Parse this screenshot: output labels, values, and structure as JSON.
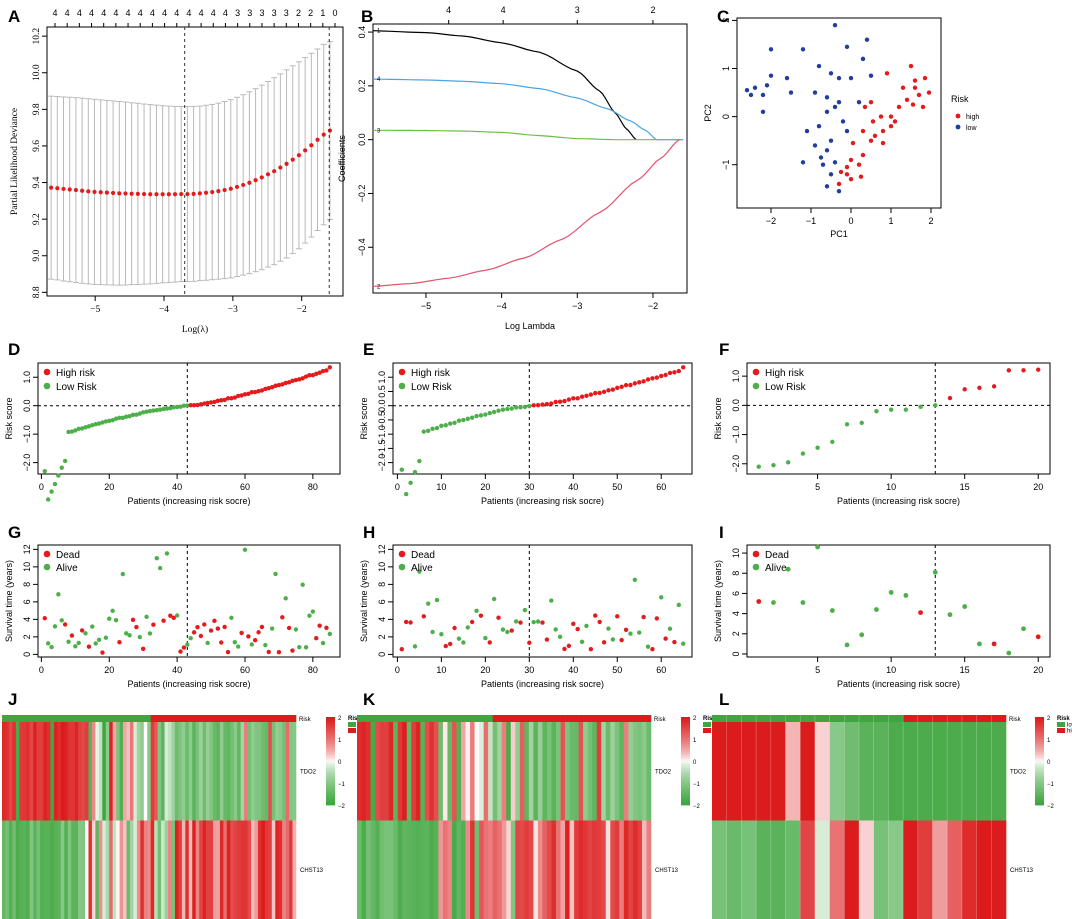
{
  "colors": {
    "red": "#e41a1c",
    "green": "#4daf4a",
    "blue": "#1f3f9e",
    "grey": "#b9b9b9",
    "hmRed": "#dc1c1c",
    "hmGreen": "#3ea63e",
    "curveBlack": "#000000",
    "curveBlue": "#4ba3e3",
    "curveGreen": "#6cc04a",
    "curvePink": "#e8516e"
  },
  "chart_data": [
    {
      "panel": "A",
      "type": "line",
      "xlabel": "Log(λ)",
      "ylabel": "Partial Likelihood Deviance",
      "xlim": [
        -5.7,
        -1.4
      ],
      "ylim": [
        8.78,
        10.25
      ],
      "xticks": [
        -5,
        -4,
        -3,
        -2
      ],
      "yticks": [
        8.8,
        9.0,
        9.2,
        9.4,
        9.6,
        9.8,
        10.0,
        10.2
      ],
      "top_ticks": [
        "4",
        "4",
        "4",
        "4",
        "4",
        "4",
        "4",
        "4",
        "4",
        "4",
        "4",
        "4",
        "4",
        "4",
        "4",
        "3",
        "3",
        "3",
        "3",
        "3",
        "2",
        "2",
        "1",
        "0"
      ],
      "vlines": [
        -3.7,
        -1.6
      ],
      "series": [
        {
          "name": "mean deviance",
          "x": [
            -5.64,
            -5.55,
            -5.46,
            -5.37,
            -5.28,
            -5.19,
            -5.1,
            -5.01,
            -4.92,
            -4.83,
            -4.74,
            -4.65,
            -4.56,
            -4.47,
            -4.38,
            -4.29,
            -4.2,
            -4.11,
            -4.02,
            -3.93,
            -3.84,
            -3.75,
            -3.66,
            -3.57,
            -3.48,
            -3.39,
            -3.3,
            -3.21,
            -3.12,
            -3.03,
            -2.94,
            -2.85,
            -2.76,
            -2.67,
            -2.58,
            -2.49,
            -2.4,
            -2.31,
            -2.22,
            -2.13,
            -2.04,
            -1.95,
            -1.86,
            -1.77,
            -1.68,
            -1.59
          ],
          "y": [
            9.372,
            9.369,
            9.365,
            9.362,
            9.359,
            9.355,
            9.352,
            9.349,
            9.347,
            9.345,
            9.343,
            9.341,
            9.34,
            9.339,
            9.338,
            9.337,
            9.336,
            9.336,
            9.336,
            9.336,
            9.336,
            9.337,
            9.337,
            9.338,
            9.341,
            9.344,
            9.348,
            9.353,
            9.359,
            9.366,
            9.376,
            9.387,
            9.399,
            9.413,
            9.428,
            9.445,
            9.462,
            9.482,
            9.502,
            9.525,
            9.549,
            9.576,
            9.604,
            9.634,
            9.662,
            9.684
          ],
          "upper": [
            9.872,
            9.87,
            9.868,
            9.866,
            9.864,
            9.861,
            9.858,
            9.855,
            9.852,
            9.849,
            9.846,
            9.843,
            9.84,
            9.836,
            9.833,
            9.829,
            9.826,
            9.823,
            9.82,
            9.818,
            9.816,
            9.815,
            9.815,
            9.816,
            9.818,
            9.822,
            9.827,
            9.834,
            9.843,
            9.853,
            9.866,
            9.88,
            9.896,
            9.913,
            9.932,
            9.952,
            9.973,
            9.994,
            10.016,
            10.038,
            10.06,
            10.083,
            10.106,
            10.13,
            10.155,
            10.17
          ],
          "lower": [
            8.872,
            8.868,
            8.862,
            8.858,
            8.854,
            8.849,
            8.846,
            8.843,
            8.842,
            8.841,
            8.84,
            8.839,
            8.84,
            8.842,
            8.843,
            8.845,
            8.846,
            8.849,
            8.852,
            8.854,
            8.856,
            8.859,
            8.859,
            8.86,
            8.864,
            8.866,
            8.869,
            8.872,
            8.875,
            8.879,
            8.886,
            8.894,
            8.902,
            8.913,
            8.924,
            8.938,
            8.951,
            8.97,
            8.988,
            9.012,
            9.038,
            9.069,
            9.102,
            9.138,
            9.169,
            9.198
          ]
        }
      ]
    },
    {
      "panel": "B",
      "type": "line",
      "xlabel": "Log Lambda",
      "ylabel": "Coefficients",
      "xlim": [
        -5.7,
        -1.55
      ],
      "ylim": [
        -0.57,
        0.43
      ],
      "xticks": [
        -5,
        -4,
        -3,
        -2
      ],
      "yticks": [
        -0.4,
        -0.2,
        0.0,
        0.2,
        0.4
      ],
      "top_ticks": [
        {
          "x": -4.7,
          "label": "4"
        },
        {
          "x": -3.98,
          "label": "4"
        },
        {
          "x": -3.0,
          "label": "3"
        },
        {
          "x": -2.0,
          "label": "2"
        }
      ],
      "series": [
        {
          "name": "1",
          "color": "#000000",
          "x": [
            -5.7,
            -5,
            -4.5,
            -4,
            -3.5,
            -3,
            -2.7,
            -2.5,
            -2.35,
            -2.22
          ],
          "y": [
            0.405,
            0.398,
            0.385,
            0.36,
            0.325,
            0.255,
            0.18,
            0.1,
            0.04,
            0.0
          ]
        },
        {
          "name": "4",
          "color": "#4ba3e3",
          "x": [
            -5.7,
            -5,
            -4.5,
            -4,
            -3.5,
            -3,
            -2.6,
            -2.3,
            -2.1,
            -1.95,
            -1.6
          ],
          "y": [
            0.225,
            0.222,
            0.217,
            0.208,
            0.19,
            0.155,
            0.115,
            0.07,
            0.035,
            0.0,
            0.0
          ]
        },
        {
          "name": "3",
          "color": "#6cc04a",
          "x": [
            -5.7,
            -5,
            -4.5,
            -4,
            -3.5,
            -3,
            -2.5,
            -2.0,
            -1.6
          ],
          "y": [
            0.035,
            0.034,
            0.032,
            0.027,
            0.015,
            0.004,
            0.0,
            0.0,
            0.0
          ]
        },
        {
          "name": "2",
          "color": "#e8516e",
          "x": [
            -5.7,
            -5.2,
            -4.7,
            -4.2,
            -3.7,
            -3.2,
            -2.7,
            -2.2,
            -1.9,
            -1.65
          ],
          "y": [
            -0.545,
            -0.535,
            -0.515,
            -0.485,
            -0.44,
            -0.37,
            -0.27,
            -0.15,
            -0.07,
            0.0
          ]
        }
      ]
    },
    {
      "panel": "C",
      "type": "scatter",
      "xlabel": "PC1",
      "ylabel": "PC2",
      "xlim": [
        -2.85,
        2.25
      ],
      "ylim": [
        -1.9,
        2.05
      ],
      "xticks": [
        -2,
        -1,
        0,
        1,
        2
      ],
      "yticks": [
        -1,
        0,
        1,
        2
      ],
      "legend_title": "Risk",
      "legend": [
        "high",
        "low"
      ],
      "series": [
        {
          "name": "high",
          "color": "#e41a1c",
          "points": [
            [
              0.9,
              0.9
            ],
            [
              1.5,
              1.05
            ],
            [
              1.6,
              0.75
            ],
            [
              1.85,
              0.8
            ],
            [
              1.3,
              0.6
            ],
            [
              1.6,
              0.6
            ],
            [
              1.7,
              0.45
            ],
            [
              1.95,
              0.5
            ],
            [
              1.4,
              0.35
            ],
            [
              1.55,
              0.25
            ],
            [
              1.8,
              0.2
            ],
            [
              1.2,
              0.2
            ],
            [
              1.0,
              0.0
            ],
            [
              0.75,
              0.0
            ],
            [
              0.55,
              -0.1
            ],
            [
              1.1,
              -0.1
            ],
            [
              1.0,
              -0.2
            ],
            [
              0.8,
              -0.3
            ],
            [
              0.3,
              -0.3
            ],
            [
              0.6,
              -0.4
            ],
            [
              0.5,
              -0.5
            ],
            [
              0.8,
              -0.55
            ],
            [
              0.05,
              -0.55
            ],
            [
              0.0,
              -0.9
            ],
            [
              0.3,
              -0.8
            ],
            [
              -0.1,
              -1.2
            ],
            [
              -0.25,
              -1.15
            ],
            [
              0.2,
              -1.0
            ],
            [
              0.0,
              -1.3
            ],
            [
              -0.3,
              -1.4
            ],
            [
              0.25,
              -1.25
            ],
            [
              -0.1,
              -1.05
            ],
            [
              0.35,
              0.2
            ],
            [
              0.5,
              0.3
            ]
          ]
        },
        {
          "name": "low",
          "color": "#1f3f9e",
          "points": [
            [
              -2.0,
              1.4
            ],
            [
              -2.2,
              0.45
            ],
            [
              -2.4,
              0.6
            ],
            [
              -2.6,
              0.55
            ],
            [
              -2.5,
              0.45
            ],
            [
              -2.1,
              0.65
            ],
            [
              -2.0,
              0.85
            ],
            [
              -1.6,
              0.8
            ],
            [
              -1.5,
              0.5
            ],
            [
              -2.2,
              0.1
            ],
            [
              -0.4,
              1.9
            ],
            [
              -0.1,
              1.45
            ],
            [
              0.4,
              1.6
            ],
            [
              0.3,
              1.2
            ],
            [
              -1.2,
              1.4
            ],
            [
              -0.8,
              1.05
            ],
            [
              -0.5,
              0.9
            ],
            [
              -0.3,
              0.8
            ],
            [
              0.0,
              0.8
            ],
            [
              -0.9,
              0.5
            ],
            [
              -0.6,
              0.4
            ],
            [
              -0.3,
              0.3
            ],
            [
              0.5,
              0.85
            ],
            [
              -0.6,
              0.1
            ],
            [
              -0.8,
              -0.2
            ],
            [
              -1.1,
              -0.3
            ],
            [
              -0.5,
              -0.5
            ],
            [
              -0.9,
              -0.6
            ],
            [
              -0.6,
              -0.7
            ],
            [
              -0.75,
              -0.85
            ],
            [
              -0.4,
              -0.95
            ],
            [
              -1.2,
              -0.95
            ],
            [
              -0.7,
              -1.0
            ],
            [
              -0.5,
              -1.2
            ],
            [
              -0.6,
              -1.45
            ],
            [
              -0.3,
              -1.55
            ],
            [
              -0.1,
              -0.3
            ],
            [
              0.2,
              0.3
            ],
            [
              -0.2,
              -0.1
            ],
            [
              -0.4,
              0.2
            ]
          ]
        }
      ]
    },
    {
      "panel": "D",
      "type": "scatter",
      "xlabel": "Patients (increasing risk socre)",
      "ylabel": "Risk score",
      "xlim": [
        -1,
        88
      ],
      "ylim": [
        -2.4,
        1.5
      ],
      "xticks": [
        0,
        20,
        40,
        60,
        80
      ],
      "yticks": [
        -2.0,
        -1.0,
        0.0,
        1.0
      ],
      "cutoff_index": 43,
      "legend": [
        "High risk",
        "Low Risk"
      ],
      "n": 85,
      "min": -2.3,
      "max": 1.35
    },
    {
      "panel": "E",
      "type": "scatter",
      "xlabel": "Patients (increasing risk socre)",
      "ylabel": "Risk score",
      "xlim": [
        -1,
        67
      ],
      "ylim": [
        -2.4,
        1.5
      ],
      "xticks": [
        0,
        10,
        20,
        30,
        40,
        50,
        60
      ],
      "yticks": [
        -2.0,
        -1.5,
        -1.0,
        -0.5,
        0.0,
        0.5,
        1.0
      ],
      "cutoff_index": 30,
      "legend": [
        "High risk",
        "Low Risk"
      ],
      "n": 65,
      "min": -2.25,
      "max": 1.35
    },
    {
      "panel": "F",
      "type": "scatter",
      "xlabel": "Patients (increasing risk socre)",
      "ylabel": "Risk score",
      "xlim": [
        0.2,
        20.8
      ],
      "ylim": [
        -2.35,
        1.45
      ],
      "xticks": [
        5,
        10,
        15,
        20
      ],
      "yticks": [
        -2.0,
        -1.0,
        0.0,
        1.0
      ],
      "cutoff_index": 13,
      "legend": [
        "High risk",
        "Low Risk"
      ],
      "values": [
        -2.1,
        -2.05,
        -1.95,
        -1.65,
        -1.45,
        -1.25,
        -0.65,
        -0.6,
        -0.2,
        -0.15,
        -0.15,
        -0.05,
        0.0,
        0.25,
        0.55,
        0.6,
        0.65,
        1.2,
        1.2,
        1.22
      ]
    },
    {
      "panel": "G",
      "type": "scatter",
      "xlabel": "Patients (increasing risk socre)",
      "ylabel": "Survival time (years)",
      "xlim": [
        -1,
        88
      ],
      "ylim": [
        -0.3,
        12.5
      ],
      "xticks": [
        0,
        20,
        40,
        60,
        80
      ],
      "yticks": [
        0,
        2,
        4,
        6,
        8,
        10,
        12
      ],
      "cutoff_index": 43,
      "legend": [
        "Dead",
        "Alive"
      ],
      "n": 85
    },
    {
      "panel": "H",
      "type": "scatter",
      "xlabel": "Patients (increasing risk socre)",
      "ylabel": "Survival time (years)",
      "xlim": [
        -1,
        67
      ],
      "ylim": [
        -0.3,
        12.5
      ],
      "xticks": [
        0,
        10,
        20,
        30,
        40,
        50,
        60
      ],
      "yticks": [
        0,
        2,
        4,
        6,
        8,
        10,
        12
      ],
      "cutoff_index": 30,
      "legend": [
        "Dead",
        "Alive"
      ],
      "n": 65
    },
    {
      "panel": "I",
      "type": "scatter",
      "xlabel": "Patients (increasing risk socre)",
      "ylabel": "Survival time (years)",
      "xlim": [
        0.2,
        20.8
      ],
      "ylim": [
        -0.3,
        10.8
      ],
      "xticks": [
        5,
        10,
        15,
        20
      ],
      "yticks": [
        0,
        2,
        4,
        6,
        8,
        10
      ],
      "cutoff_index": 13,
      "legend": [
        "Dead",
        "Alive"
      ],
      "times": [
        5.2,
        5.1,
        8.4,
        5.1,
        10.6,
        4.3,
        0.9,
        1.9,
        4.4,
        6.1,
        5.8,
        4.1,
        8.1,
        3.9,
        4.7,
        1.0,
        1.0,
        0.1,
        2.5,
        1.7
      ],
      "status": [
        "dead",
        "alive",
        "alive",
        "alive",
        "alive",
        "alive",
        "alive",
        "alive",
        "alive",
        "alive",
        "alive",
        "dead",
        "alive",
        "alive",
        "alive",
        "alive",
        "dead",
        "alive",
        "alive",
        "dead"
      ]
    },
    {
      "panel": "J",
      "type": "heatmap",
      "rows": [
        "TDO2",
        "CHST13"
      ],
      "annotation": "Risk",
      "legend_title": "Risk",
      "legend": [
        "low",
        "high"
      ],
      "scale": [
        "2",
        "1",
        "0",
        "−1",
        "−2"
      ],
      "n": 85,
      "cutoff_index": 43
    },
    {
      "panel": "K",
      "type": "heatmap",
      "rows": [
        "TDO2",
        "CHST13"
      ],
      "annotation": "Risk",
      "legend_title": "Risk",
      "legend": [
        "low",
        "high"
      ],
      "scale": [
        "2",
        "1",
        "0",
        "−1",
        "−2"
      ],
      "n": 65,
      "cutoff_index": 30
    },
    {
      "panel": "L",
      "type": "heatmap",
      "rows": [
        "TDO2",
        "CHST13"
      ],
      "annotation": "Risk",
      "legend_title": "Risk",
      "legend": [
        "low",
        "high"
      ],
      "scale": [
        "2",
        "1",
        "0",
        "−1",
        "−2"
      ],
      "n": 20,
      "cutoff_index": 13,
      "tdo2": [
        2,
        2,
        2,
        2,
        2,
        0.4,
        2,
        0.2,
        -1,
        -1.3,
        -1.6,
        -1.6,
        -1.8,
        -1.8,
        -1.8,
        -1.8,
        -1.8,
        -1.8,
        -1.8,
        -1.8
      ],
      "chst13": [
        -1.2,
        -1.4,
        -1.2,
        -1.6,
        -1.6,
        -1.4,
        1.5,
        -0.2,
        1.0,
        2,
        0.2,
        -1.2,
        -1.0,
        2,
        1.6,
        0.6,
        1.2,
        1.8,
        2,
        2
      ]
    }
  ]
}
